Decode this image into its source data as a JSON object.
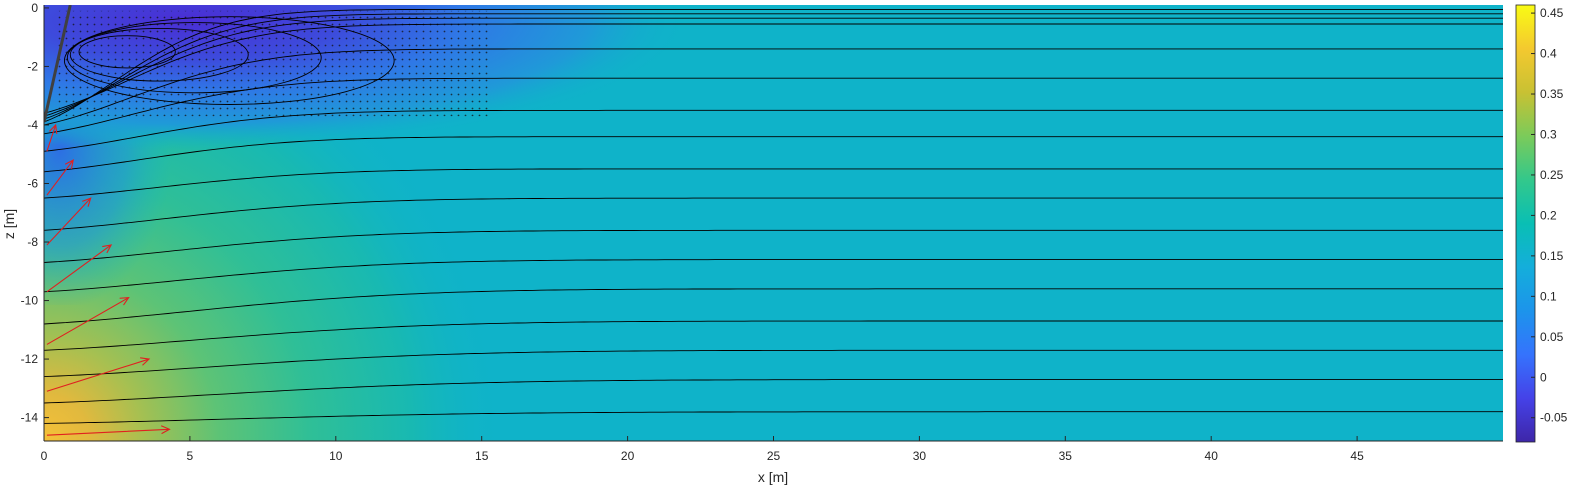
{
  "chart_data": {
    "type": "contour",
    "xlabel": "x [m]",
    "ylabel": "z [m]",
    "xlim": [
      0,
      50
    ],
    "ylim": [
      -14.8,
      0.1
    ],
    "x_ticks": [
      0,
      5,
      10,
      15,
      20,
      25,
      30,
      35,
      40,
      45
    ],
    "y_ticks": [
      0,
      -2,
      -4,
      -6,
      -8,
      -10,
      -12,
      -14
    ],
    "colorbar": {
      "colormap": "parula",
      "lim": [
        -0.08,
        0.46
      ],
      "ticks": [
        -0.05,
        0,
        0.05,
        0.1,
        0.15,
        0.2,
        0.25,
        0.3,
        0.35,
        0.4,
        0.45
      ]
    },
    "colors": {
      "background_field": "#0fb3c9",
      "wake_low": "#4a2ed4",
      "line_color": "#000000",
      "arrow_color": "#e02020",
      "structure_color": "#404040"
    },
    "streamline_far_depths": [
      -0.05,
      -0.2,
      -0.35,
      -0.55,
      -1.4,
      -2.4,
      -3.5,
      -4.4,
      -5.5,
      -6.5,
      -7.6,
      -8.6,
      -9.6,
      -10.7,
      -11.7,
      -12.7,
      -13.8
    ],
    "streamline_wall_depths": [
      -4.0,
      -4.3,
      -4.9,
      -5.6,
      -6.5,
      -7.6,
      -8.7,
      -9.7,
      -10.8,
      -11.7,
      -12.6,
      -13.5,
      -14.2,
      -14.8
    ],
    "recirculation_loops": [
      {
        "x_from": 1.2,
        "x_to": 4.5,
        "z_center": -1.5,
        "half_height": 0.55
      },
      {
        "x_from": 0.9,
        "x_to": 7.0,
        "z_center": -1.6,
        "half_height": 0.9
      },
      {
        "x_from": 0.8,
        "x_to": 9.5,
        "z_center": -1.7,
        "half_height": 1.2
      },
      {
        "x_from": 0.7,
        "x_to": 12.0,
        "z_center": -1.8,
        "half_height": 1.5
      }
    ],
    "stippled_region": {
      "x_from": 0.5,
      "x_to": 15.3,
      "z_from": -0.1,
      "z_to": -3.7
    },
    "velocity_arrows": [
      {
        "x": 0.1,
        "z": -4.9,
        "dx": 0.3,
        "dz": 0.9
      },
      {
        "x": 0.1,
        "z": -6.4,
        "dx": 0.9,
        "dz": 1.2
      },
      {
        "x": 0.1,
        "z": -8.1,
        "dx": 1.5,
        "dz": 1.6
      },
      {
        "x": 0.1,
        "z": -9.7,
        "dx": 2.2,
        "dz": 1.6
      },
      {
        "x": 0.1,
        "z": -11.5,
        "dx": 2.8,
        "dz": 1.6
      },
      {
        "x": 0.1,
        "z": -13.1,
        "dx": 3.5,
        "dz": 1.1
      },
      {
        "x": 0.1,
        "z": -14.6,
        "dx": 4.2,
        "dz": 0.2
      }
    ],
    "structure": [
      {
        "x1": -1.0,
        "z1": 0.1,
        "x2": 0.0,
        "z2": -3.9
      },
      {
        "x1": 0.0,
        "z1": -3.9,
        "x2": 0.9,
        "z2": 0.1
      }
    ]
  }
}
